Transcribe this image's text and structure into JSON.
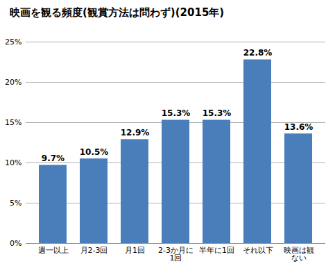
{
  "chart_data": {
    "type": "bar",
    "title": "映画を観る頻度(観賞方法は問わず)(2015年)",
    "categories": [
      "週一以上",
      "月2-3回",
      "月1回",
      "2-3か月に1回",
      "半年に1回",
      "それ以下",
      "映画は観ない"
    ],
    "values": [
      9.7,
      10.5,
      12.9,
      15.3,
      15.3,
      22.8,
      13.6
    ],
    "value_labels": [
      "9.7%",
      "10.5%",
      "12.9%",
      "15.3%",
      "15.3%",
      "22.8%",
      "13.6%"
    ],
    "color": "#4a7ebb",
    "ylim": [
      0,
      25
    ],
    "yticks": [
      {
        "value": 0,
        "label": "0%"
      },
      {
        "value": 5,
        "label": "5%"
      },
      {
        "value": 10,
        "label": "10%"
      },
      {
        "value": 15,
        "label": "15%"
      },
      {
        "value": 20,
        "label": "20%"
      },
      {
        "value": 25,
        "label": "25%"
      }
    ],
    "grid": true,
    "data_labels": true
  }
}
